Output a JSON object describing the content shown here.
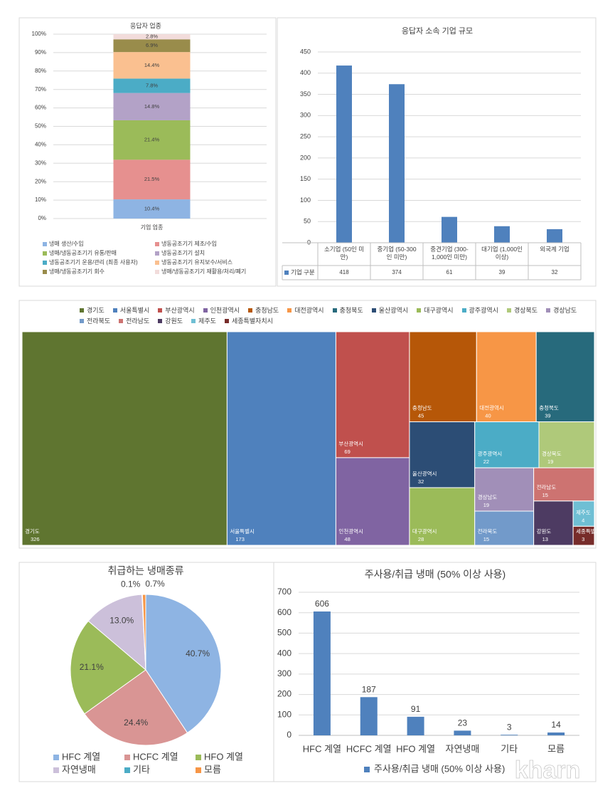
{
  "chart_data": [
    {
      "type": "bar",
      "stacked": true,
      "title": "응답자 업종",
      "categories": [
        "기업 업종"
      ],
      "grid": true,
      "ylim": [
        0,
        100
      ],
      "yticks": [
        {
          "value": 0,
          "label": "0%"
        },
        {
          "value": 10,
          "label": "10%"
        },
        {
          "value": 20,
          "label": "20%"
        },
        {
          "value": 30,
          "label": "30%"
        },
        {
          "value": 40,
          "label": "40%"
        },
        {
          "value": 50,
          "label": "50%"
        },
        {
          "value": 60,
          "label": "60%"
        },
        {
          "value": 70,
          "label": "70%"
        },
        {
          "value": 80,
          "label": "80%"
        },
        {
          "value": 90,
          "label": "90%"
        },
        {
          "value": 100,
          "label": "100%"
        }
      ],
      "series": [
        {
          "name": "냉매 생산/수입",
          "color": "#8eb4e3",
          "values": [
            10.4
          ],
          "value_labels": [
            "10.4%"
          ]
        },
        {
          "name": "냉동공조기기 제조/수입",
          "color": "#e6908f",
          "values": [
            21.5
          ],
          "value_labels": [
            "21.5%"
          ]
        },
        {
          "name": "냉매/냉동공조기기 유통/판매",
          "color": "#9bbb59",
          "values": [
            21.4
          ],
          "value_labels": [
            "21.4%"
          ]
        },
        {
          "name": "냉동공조기기 설치",
          "color": "#b3a2c7",
          "values": [
            14.8
          ],
          "value_labels": [
            "14.8%"
          ]
        },
        {
          "name": "냉동공조기기 운용/관리 (최종 사용자)",
          "color": "#4bacc6",
          "values": [
            7.8
          ],
          "value_labels": [
            "7.8%"
          ]
        },
        {
          "name": "냉동공조기기 유지보수/서비스",
          "color": "#fac090",
          "values": [
            14.4
          ],
          "value_labels": [
            "14.4%"
          ]
        },
        {
          "name": "냉매/냉동공조기기 회수",
          "color": "#998c4b",
          "values": [
            6.9
          ],
          "value_labels": [
            "6.9%"
          ]
        },
        {
          "name": "냉매/냉동공조기기 재활용/처리/폐기",
          "color": "#f2dcdb",
          "values": [
            2.8
          ],
          "value_labels": [
            "2.8%"
          ]
        }
      ]
    },
    {
      "type": "bar",
      "title": "응답자 소속 기업 규모",
      "grid": true,
      "data_table": true,
      "categories": [
        "소기업 (50인 미만)",
        "중기업 (50-300인 미만)",
        "중견기업 (300-1,000인 미만)",
        "대기업 (1,000인 이상)",
        "외국계 기업"
      ],
      "ylim": [
        0,
        450
      ],
      "yticks": [
        0,
        50,
        100,
        150,
        200,
        250,
        300,
        350,
        400,
        450
      ],
      "series": [
        {
          "name": "기업 구분",
          "color": "#4f81bd",
          "values": [
            418,
            374,
            61,
            39,
            32
          ]
        }
      ]
    },
    {
      "type": "treemap",
      "series": [
        {
          "name": "경기도",
          "color": "#5f7530",
          "values": [
            326
          ]
        },
        {
          "name": "서울특별시",
          "color": "#4f81bd",
          "values": [
            173
          ]
        },
        {
          "name": "부산광역시",
          "color": "#c0504d",
          "values": [
            69
          ]
        },
        {
          "name": "인천광역시",
          "color": "#8064a2",
          "values": [
            48
          ]
        },
        {
          "name": "충청남도",
          "color": "#b65708",
          "values": [
            45
          ]
        },
        {
          "name": "대전광역시",
          "color": "#f79646",
          "values": [
            40
          ]
        },
        {
          "name": "충청북도",
          "color": "#276a7c",
          "values": [
            39
          ]
        },
        {
          "name": "울산광역시",
          "color": "#2c4d75",
          "values": [
            32
          ]
        },
        {
          "name": "대구광역시",
          "color": "#9bbb59",
          "values": [
            28
          ]
        },
        {
          "name": "광주광역시",
          "color": "#4bacc6",
          "values": [
            22
          ]
        },
        {
          "name": "경상북도",
          "color": "#afc97a",
          "values": [
            19
          ]
        },
        {
          "name": "경상남도",
          "color": "#a18fb8",
          "values": [
            19
          ]
        },
        {
          "name": "전라북도",
          "color": "#729aca",
          "values": [
            15
          ]
        },
        {
          "name": "전라남도",
          "color": "#cd7371",
          "values": [
            15
          ]
        },
        {
          "name": "강원도",
          "color": "#4d3b62",
          "values": [
            13
          ]
        },
        {
          "name": "제주도",
          "color": "#6fbfd4",
          "values": [
            4
          ]
        },
        {
          "name": "세종특별자치시",
          "color": "#772c2a",
          "values": [
            3
          ]
        }
      ]
    },
    {
      "type": "pie",
      "title": "취급하는 냉매종류",
      "categories": [
        "HFC 계열",
        "HCFC 계열",
        "HFO 계열",
        "자연냉매",
        "기타",
        "모름"
      ],
      "colors": [
        "#8eb4e3",
        "#d99594",
        "#9bbb59",
        "#ccc0da",
        "#4bacc6",
        "#f79646"
      ],
      "values": [
        40.7,
        24.4,
        21.1,
        13.0,
        0.1,
        0.7
      ],
      "value_labels": [
        "40.7%",
        "24.4%",
        "21.1%",
        "13.0%",
        "0.1%",
        "0.7%"
      ]
    },
    {
      "type": "bar",
      "title": "주사용/취급 냉매 (50% 이상 사용)",
      "grid": true,
      "data_labels": true,
      "categories": [
        "HFC 계열",
        "HCFC 계열",
        "HFO 계열",
        "자연냉매",
        "기타",
        "모름"
      ],
      "ylim": [
        0,
        700
      ],
      "yticks": [
        0,
        100,
        200,
        300,
        400,
        500,
        600,
        700
      ],
      "series": [
        {
          "name": "주사용/취급 냉매 (50% 이상 사용)",
          "color": "#4f81bd",
          "values": [
            606,
            187,
            91,
            23,
            3,
            14
          ]
        }
      ]
    }
  ],
  "watermark": "kharn"
}
